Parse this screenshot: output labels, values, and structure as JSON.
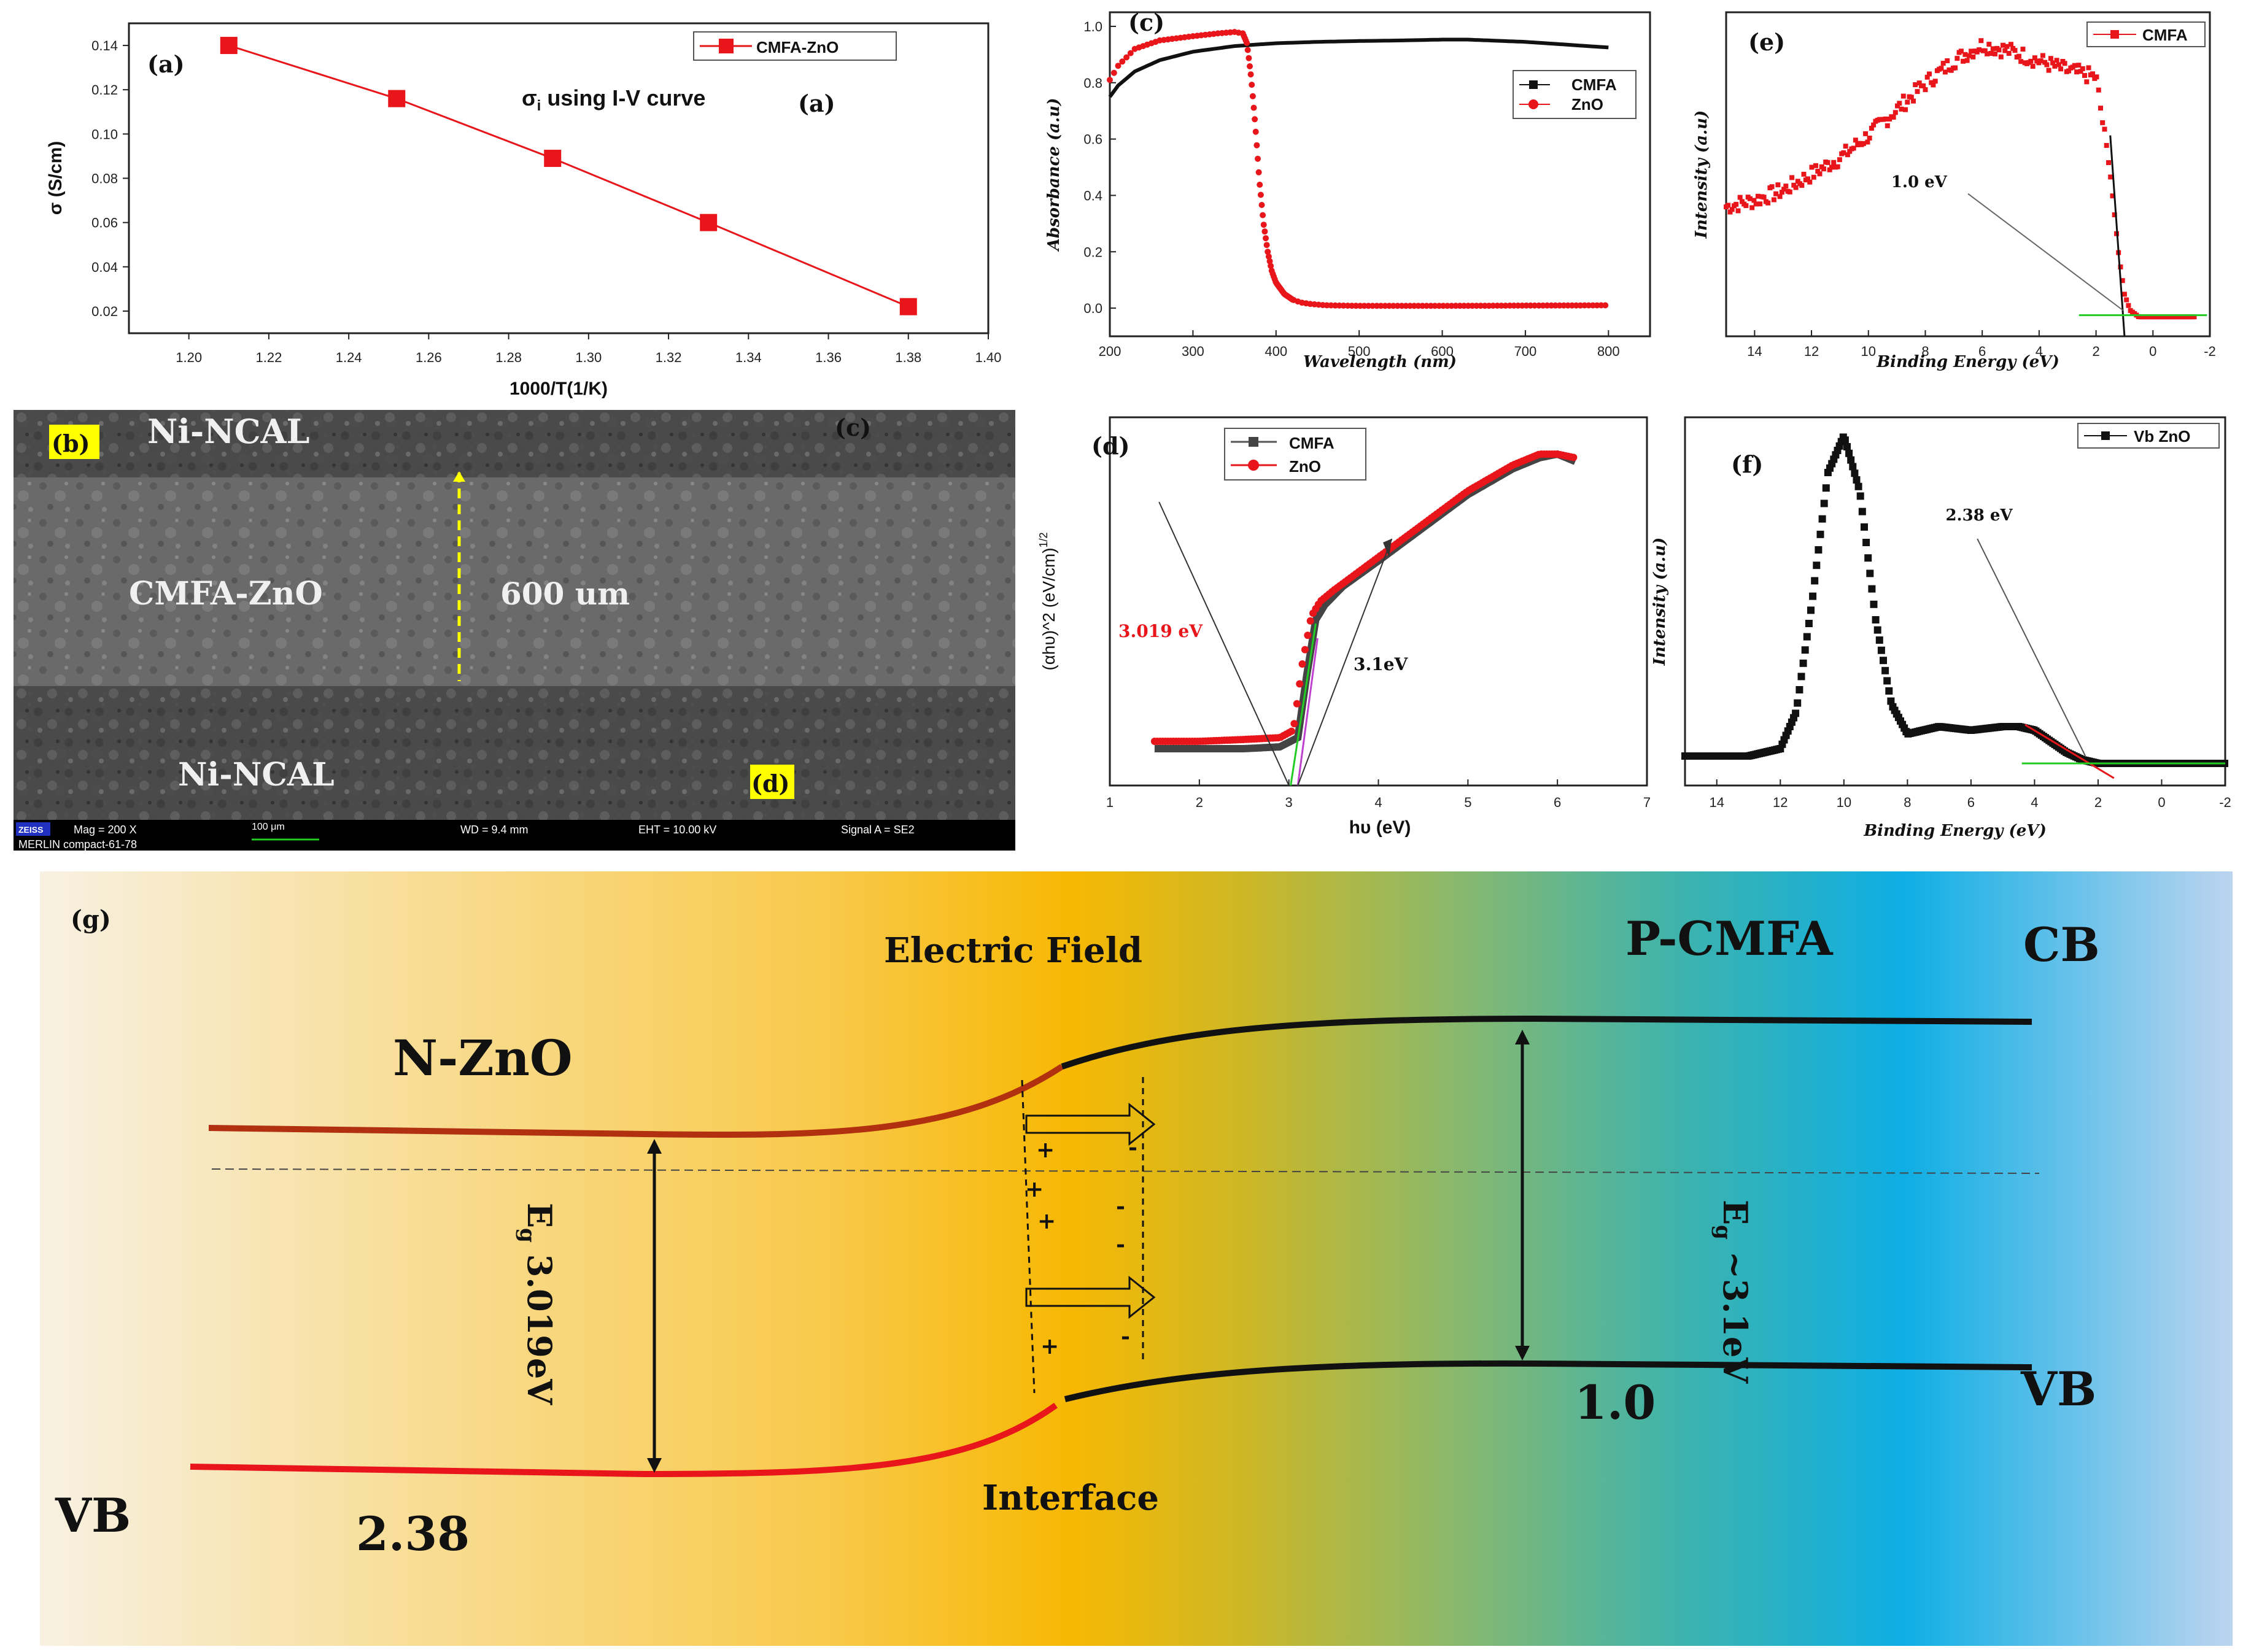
{
  "colors": {
    "red": "#e8151b",
    "black": "#111111",
    "green": "#22cc22",
    "yellow": "#ffff00",
    "darkred": "#b03010"
  },
  "panel_a": {
    "tag": "(a)",
    "annotation_prefix": "σ",
    "annotation_sub": "i",
    "annotation_rest": " using I-V curve",
    "annotation_tag": "(a)",
    "legend": "CMFA-ZnO",
    "xlabel": "1000/T(1/K)",
    "ylabel": "σ (S/cm)",
    "xticks": [
      "1.20",
      "1.22",
      "1.24",
      "1.26",
      "1.28",
      "1.30",
      "1.32",
      "1.34",
      "1.36",
      "1.38",
      "1.40"
    ],
    "yticks": [
      "0.02",
      "0.04",
      "0.06",
      "0.08",
      "0.10",
      "0.12",
      "0.14"
    ]
  },
  "panel_b": {
    "tag_b": "(b)",
    "tag_c": "(c)",
    "tag_d": "(d)",
    "top_layer": "Ni-NCAL",
    "middle_layer": "CMFA-ZnO",
    "bottom_layer": "Ni-NCAL",
    "thickness": "600 um",
    "footer_brand": "ZEISS",
    "footer_model": "MERLIN compact-61-78",
    "footer_mag": "Mag =    200 X",
    "footer_scale": "100 μm",
    "footer_wd": "WD =  9.4 mm",
    "footer_eht": "EHT = 10.00 kV",
    "footer_signal": "Signal A = SE2"
  },
  "panel_c": {
    "tag": "(c)",
    "xlabel": "Wavelength (nm)",
    "ylabel": "Absorbance (a.u)",
    "xticks": [
      "200",
      "300",
      "400",
      "500",
      "600",
      "700",
      "800"
    ],
    "yticks": [
      "0.0",
      "0.2",
      "0.4",
      "0.6",
      "0.8",
      "1.0"
    ],
    "legend": [
      "CMFA",
      "ZnO"
    ]
  },
  "panel_d": {
    "tag": "(d)",
    "xlabel": "hυ (eV)",
    "ylabel": "(αhυ)^2 (eV/cm)",
    "ylabel_sup": "1/2",
    "xticks": [
      "1",
      "2",
      "3",
      "4",
      "5",
      "6",
      "7"
    ],
    "legend": [
      "CMFA",
      "ZnO"
    ],
    "ann_red": "3.019 eV",
    "ann_black": "3.1eV"
  },
  "panel_e": {
    "tag": "(e)",
    "xlabel": "Binding Energy (eV)",
    "ylabel": "Intensity (a.u)",
    "xticks": [
      "14",
      "12",
      "10",
      "8",
      "6",
      "4",
      "2",
      "0",
      "-2"
    ],
    "legend": "CMFA",
    "annotation": "1.0 eV"
  },
  "panel_f": {
    "tag": "(f)",
    "xlabel": "Binding Energy (eV)",
    "ylabel": "Intensity (a.u)",
    "xticks": [
      "14",
      "12",
      "10",
      "8",
      "6",
      "4",
      "2",
      "0",
      "-2"
    ],
    "legend": "Vb ZnO",
    "annotation": "2.38 eV"
  },
  "panel_g": {
    "tag": "(g)",
    "electric_field": "Electric Field",
    "p_cmfa": "P-CMFA",
    "cb": "CB",
    "n_zno": "N-ZnO",
    "eg_left_base": "E",
    "eg_left_sub": "g",
    "eg_left_value": " 3.019eV",
    "eg_right_base": "E",
    "eg_right_sub": "g",
    "eg_right_value": " ~3.1eV",
    "vb_right": "VB",
    "vb_left": "VB",
    "value_right": "1.0",
    "value_left": "2.38",
    "interface": "Interface",
    "plus": "+",
    "minus": "-"
  },
  "chart_data": [
    {
      "id": "a",
      "type": "line",
      "title": "σi using I-V curve",
      "xlabel": "1000/T(1/K)",
      "ylabel": "σ (S/cm)",
      "xlim": [
        1.185,
        1.4
      ],
      "ylim": [
        0.01,
        0.15
      ],
      "series": [
        {
          "name": "CMFA-ZnO",
          "x": [
            1.21,
            1.252,
            1.291,
            1.33,
            1.38
          ],
          "y": [
            0.14,
            0.116,
            0.089,
            0.06,
            0.022
          ]
        }
      ]
    },
    {
      "id": "c",
      "type": "line",
      "xlabel": "Wavelength (nm)",
      "ylabel": "Absorbance (a.u)",
      "xlim": [
        200,
        850
      ],
      "ylim": [
        -0.1,
        1.05
      ],
      "series": [
        {
          "name": "CMFA",
          "x": [
            200,
            210,
            230,
            260,
            300,
            350,
            400,
            450,
            500,
            550,
            600,
            630,
            700,
            750,
            800
          ],
          "y": [
            0.75,
            0.79,
            0.84,
            0.88,
            0.91,
            0.93,
            0.94,
            0.945,
            0.948,
            0.95,
            0.953,
            0.953,
            0.945,
            0.935,
            0.925
          ]
        },
        {
          "name": "ZnO",
          "x": [
            200,
            210,
            230,
            260,
            300,
            330,
            350,
            360,
            365,
            370,
            375,
            380,
            385,
            390,
            395,
            400,
            410,
            420,
            430,
            440,
            460,
            500,
            600,
            700,
            800
          ],
          "y": [
            0.81,
            0.86,
            0.92,
            0.95,
            0.965,
            0.975,
            0.98,
            0.975,
            0.94,
            0.82,
            0.65,
            0.45,
            0.3,
            0.2,
            0.13,
            0.09,
            0.05,
            0.03,
            0.02,
            0.015,
            0.01,
            0.008,
            0.008,
            0.009,
            0.01
          ]
        }
      ]
    },
    {
      "id": "d",
      "type": "line",
      "xlabel": "hυ (eV)",
      "ylabel": "(αhυ)^2 (eV/cm)^1/2",
      "xlim": [
        1,
        7
      ],
      "ylim": [
        0,
        1.0
      ],
      "series": [
        {
          "name": "CMFA",
          "x": [
            1.5,
            2.0,
            2.5,
            2.9,
            3.1,
            3.2,
            3.3,
            3.4,
            3.6,
            4.0,
            4.5,
            5.0,
            5.5,
            5.8,
            6.0,
            6.2
          ],
          "y": [
            0.1,
            0.1,
            0.1,
            0.105,
            0.13,
            0.3,
            0.45,
            0.49,
            0.54,
            0.61,
            0.7,
            0.79,
            0.86,
            0.89,
            0.9,
            0.88
          ]
        },
        {
          "name": "ZnO",
          "x": [
            1.5,
            2.0,
            2.5,
            2.9,
            3.05,
            3.15,
            3.25,
            3.35,
            3.5,
            4.0,
            4.5,
            5.0,
            5.5,
            5.8,
            6.0,
            6.2
          ],
          "y": [
            0.12,
            0.12,
            0.125,
            0.13,
            0.15,
            0.33,
            0.46,
            0.5,
            0.53,
            0.62,
            0.71,
            0.8,
            0.87,
            0.9,
            0.9,
            0.89
          ]
        }
      ],
      "annotations": [
        {
          "text": "3.019 eV",
          "x": 3.019
        },
        {
          "text": "3.1eV",
          "x": 3.1
        }
      ]
    },
    {
      "id": "e",
      "type": "scatter",
      "xlabel": "Binding Energy (eV)",
      "ylabel": "Intensity (a.u)",
      "xlim": [
        15,
        -2
      ],
      "ylim": [
        0,
        1.0
      ],
      "series": [
        {
          "name": "CMFA",
          "x": [
            15,
            14,
            13,
            12,
            11,
            10,
            9,
            8,
            7,
            6,
            5,
            4,
            3,
            2,
            1.5,
            1.2,
            1.0,
            0.8,
            0.5,
            0,
            -1,
            -1.5
          ],
          "y": [
            0.4,
            0.42,
            0.45,
            0.5,
            0.55,
            0.62,
            0.7,
            0.78,
            0.85,
            0.9,
            0.88,
            0.85,
            0.82,
            0.8,
            0.5,
            0.25,
            0.13,
            0.08,
            0.06,
            0.06,
            0.06,
            0.06
          ]
        }
      ],
      "annotations": [
        {
          "text": "1.0 eV",
          "x": 1.0
        }
      ]
    },
    {
      "id": "f",
      "type": "scatter",
      "xlabel": "Binding Energy (eV)",
      "ylabel": "Intensity (a.u)",
      "xlim": [
        15,
        -2
      ],
      "ylim": [
        0,
        1.0
      ],
      "series": [
        {
          "name": "Vb ZnO",
          "x": [
            15,
            13,
            12,
            11.5,
            11,
            10.5,
            10,
            9.5,
            9,
            8.5,
            8,
            7.5,
            7,
            6,
            5,
            4.5,
            4,
            3,
            2.5,
            2,
            1,
            0,
            -2
          ],
          "y": [
            0.08,
            0.08,
            0.1,
            0.2,
            0.5,
            0.85,
            0.95,
            0.8,
            0.45,
            0.22,
            0.14,
            0.15,
            0.16,
            0.15,
            0.16,
            0.16,
            0.15,
            0.09,
            0.07,
            0.06,
            0.06,
            0.06,
            0.06
          ]
        }
      ],
      "annotations": [
        {
          "text": "2.38 eV",
          "x": 2.38
        }
      ]
    }
  ]
}
